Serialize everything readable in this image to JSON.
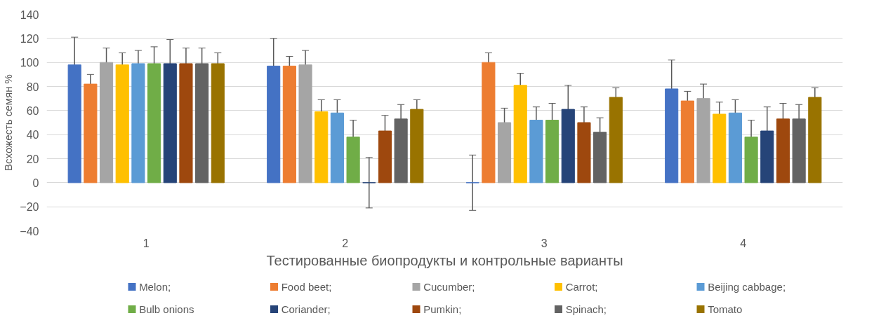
{
  "chart_data": {
    "type": "bar",
    "xlabel": "Тестированные биопродукты и контрольные варианты",
    "ylabel": "Всхожесть семян %",
    "categories": [
      "1",
      "2",
      "3",
      "4"
    ],
    "ylim": [
      -40,
      140
    ],
    "yticks": [
      -40,
      -20,
      0,
      20,
      40,
      60,
      80,
      100,
      120,
      140
    ],
    "grid": "y",
    "legend": "bottom",
    "series": [
      {
        "name": "Melon;",
        "color": "#4472c4",
        "values": [
          98,
          97,
          0,
          78
        ],
        "errors": [
          23,
          23,
          23,
          24
        ]
      },
      {
        "name": "Food beet;",
        "color": "#ed7d31",
        "values": [
          82,
          97,
          100,
          68
        ],
        "errors": [
          8,
          8,
          8,
          8
        ]
      },
      {
        "name": "Cucumber;",
        "color": "#a5a5a5",
        "values": [
          100,
          98,
          50,
          70
        ],
        "errors": [
          12,
          12,
          12,
          12
        ]
      },
      {
        "name": "Carrot;",
        "color": "#ffc000",
        "values": [
          98,
          59,
          81,
          57
        ],
        "errors": [
          10,
          10,
          10,
          10
        ]
      },
      {
        "name": "Beijing cabbage;",
        "color": "#5b9bd5",
        "values": [
          99,
          58,
          52,
          58
        ],
        "errors": [
          11,
          11,
          11,
          11
        ]
      },
      {
        "name": "Bulb onions",
        "color": "#70ad47",
        "values": [
          99,
          38,
          52,
          38
        ],
        "errors": [
          14,
          14,
          14,
          14
        ]
      },
      {
        "name": "Coriander;",
        "color": "#264478",
        "values": [
          99,
          0,
          61,
          43
        ],
        "errors": [
          20,
          21,
          20,
          20
        ]
      },
      {
        "name": "Pumkin;",
        "color": "#9e480e",
        "values": [
          99,
          43,
          50,
          53
        ],
        "errors": [
          13,
          13,
          13,
          13
        ]
      },
      {
        "name": "Spinach;",
        "color": "#636363",
        "values": [
          99,
          53,
          42,
          53
        ],
        "errors": [
          13,
          12,
          12,
          12
        ]
      },
      {
        "name": "Tomato",
        "color": "#997300",
        "values": [
          99,
          61,
          71,
          71
        ],
        "errors": [
          9,
          8,
          8,
          8
        ]
      }
    ]
  }
}
